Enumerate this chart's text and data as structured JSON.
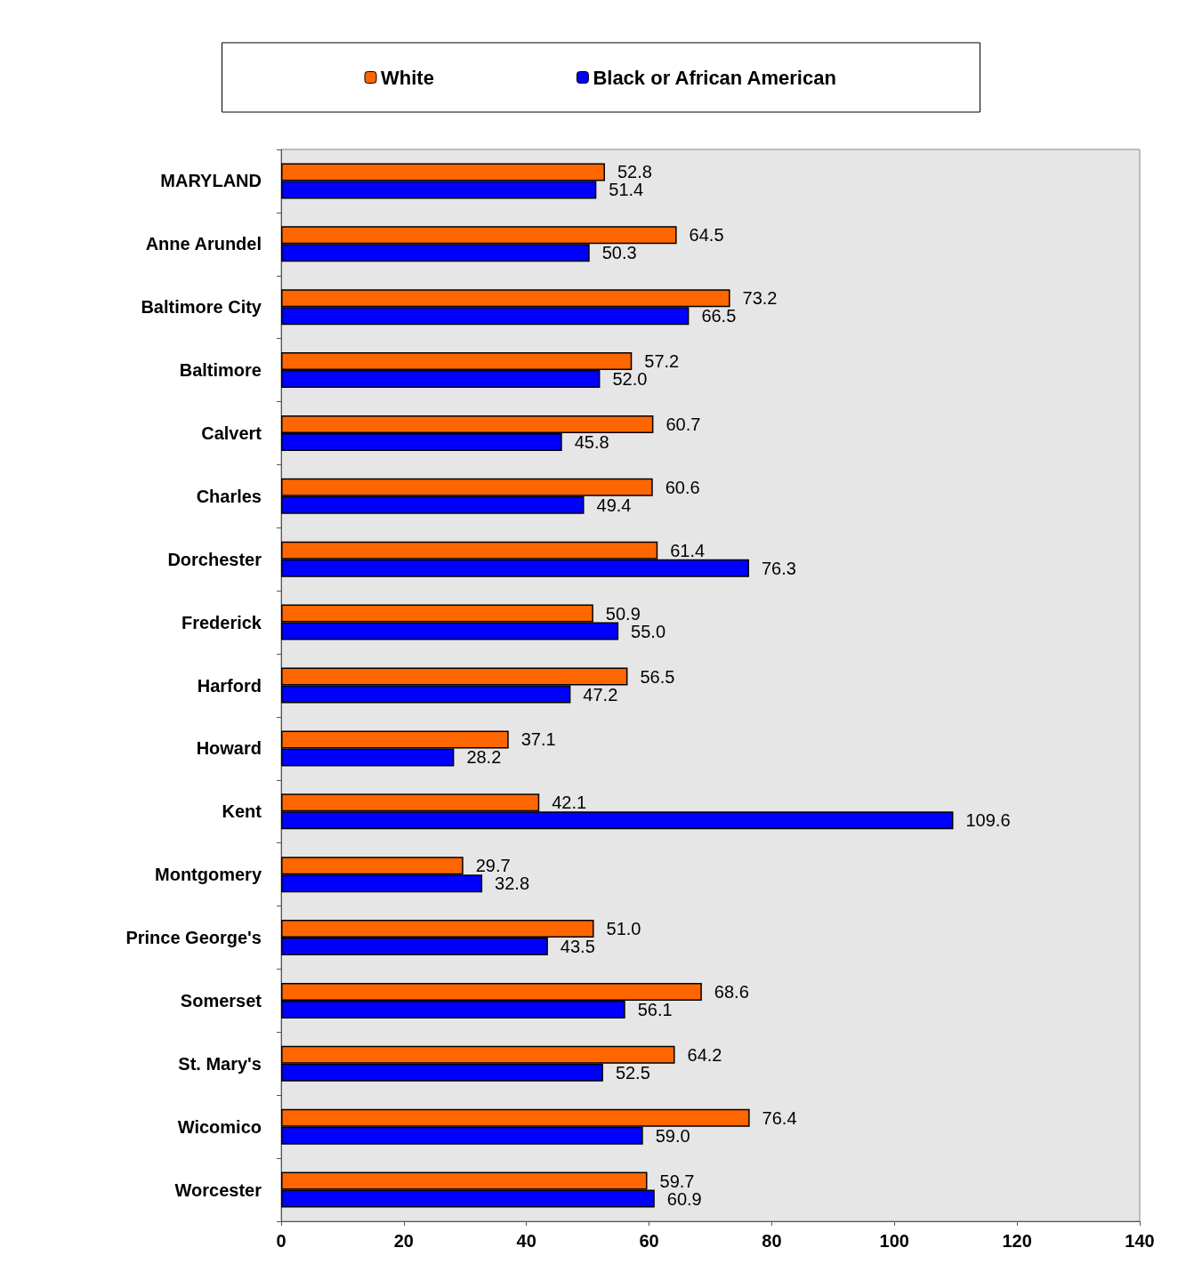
{
  "chart_data": {
    "type": "bar",
    "orientation": "horizontal",
    "categories": [
      "MARYLAND",
      "Anne Arundel",
      "Baltimore City",
      "Baltimore",
      "Calvert",
      "Charles",
      "Dorchester",
      "Frederick",
      "Harford",
      "Howard",
      "Kent",
      "Montgomery",
      "Prince George's",
      "Somerset",
      "St. Mary's",
      "Wicomico",
      "Worcester"
    ],
    "series": [
      {
        "name": "White",
        "color": "#ff6600",
        "values": [
          52.8,
          64.5,
          73.2,
          57.2,
          60.7,
          60.6,
          61.4,
          50.9,
          56.5,
          37.1,
          42.1,
          29.7,
          51.0,
          68.6,
          64.2,
          76.4,
          59.7
        ],
        "value_labels": [
          "52.8",
          "64.5",
          "73.2",
          "57.2",
          "60.7",
          "60.6",
          "61.4",
          "50.9",
          "56.5",
          "37.1",
          "42.1",
          "29.7",
          "51.0",
          "68.6",
          "64.2",
          "76.4",
          "59.7"
        ]
      },
      {
        "name": "Black or African American",
        "color": "#0000ff",
        "values": [
          51.4,
          50.3,
          66.5,
          52.0,
          45.8,
          49.4,
          76.3,
          55.0,
          47.2,
          28.2,
          109.6,
          32.8,
          43.5,
          56.1,
          52.5,
          59.0,
          60.9
        ],
        "value_labels": [
          "51.4",
          "50.3",
          "66.5",
          "52.0",
          "45.8",
          "49.4",
          "76.3",
          "55.0",
          "47.2",
          "28.2",
          "109.6",
          "32.8",
          "43.5",
          "56.1",
          "52.5",
          "59.0",
          "60.9"
        ]
      }
    ],
    "xlim": [
      0,
      140
    ],
    "xticks": [
      0,
      20,
      40,
      60,
      80,
      100,
      120,
      140
    ],
    "grid": false,
    "legend": "top"
  }
}
